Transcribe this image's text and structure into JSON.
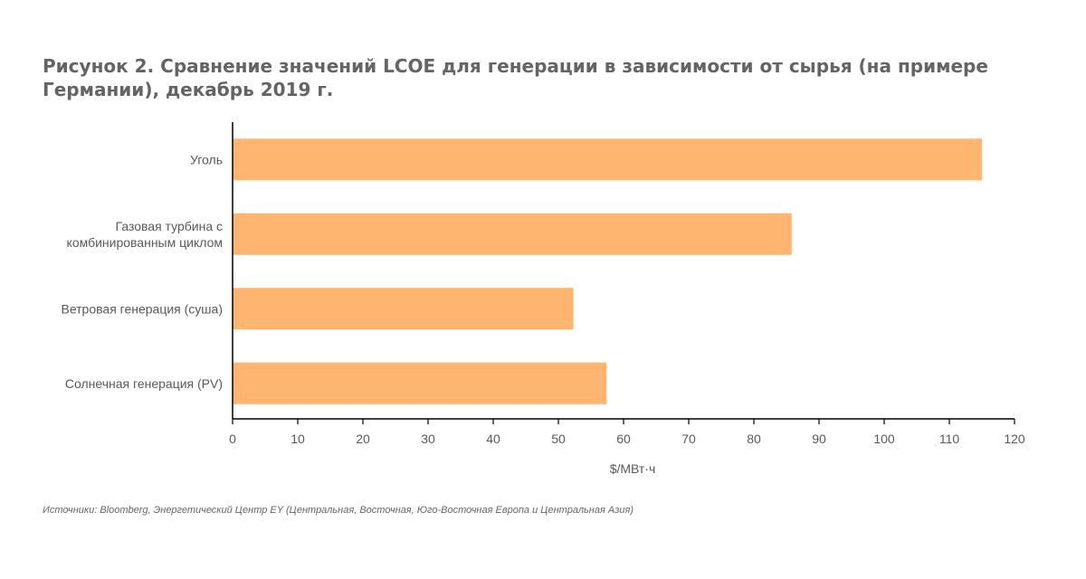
{
  "chart_data": {
    "type": "bar",
    "orientation": "horizontal",
    "title": "Рисунок 2. Сравнение значений LCOE для генерации в зависимости от сырья (на примере Германии), декабрь 2019 г.",
    "categories": [
      [
        "Уголь"
      ],
      [
        "Газовая турбина с",
        "комбинированным циклом"
      ],
      [
        "Ветровая генерация (суша)"
      ],
      [
        "Солнечная генерация (PV)"
      ]
    ],
    "values": [
      115,
      85.8,
      52.3,
      57.4
    ],
    "xlabel": "$/МВт·ч",
    "xlim": [
      0,
      120
    ],
    "xticks": [
      "0",
      "10",
      "20",
      "30",
      "40",
      "50",
      "60",
      "70",
      "80",
      "90",
      "100",
      "110",
      "120"
    ],
    "bar_color": "#FDB56F",
    "grid": false,
    "legend": "none"
  },
  "source": "Источники: Bloomberg, Энергетический Центр EY (Центральная, Восточная, Юго-Восточная Европа и Центральная Азия)"
}
